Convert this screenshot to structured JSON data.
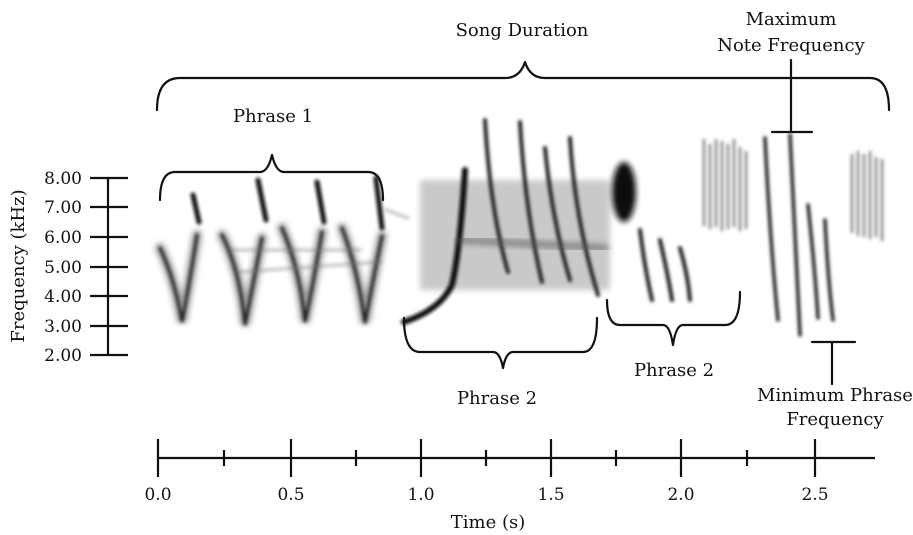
{
  "annotations": {
    "song_duration": "Song Duration",
    "max_note_line1": "Maximum",
    "max_note_line2": "Note Frequency",
    "phrase1": "Phrase 1",
    "phrase2_a": "Phrase 2",
    "phrase2_b": "Phrase 2",
    "min_phrase_line1": "Minimum Phrase",
    "min_phrase_line2": "Frequency"
  },
  "y_axis": {
    "label": "Frequency (kHz)",
    "ticks": [
      "8.00",
      "7.00",
      "6.00",
      "5.00",
      "4.00",
      "3.00",
      "2.00"
    ]
  },
  "x_axis": {
    "label": "Time (s)",
    "ticks": [
      "0.0",
      "0.5",
      "1.0",
      "1.5",
      "2.0",
      "2.5"
    ]
  },
  "colors": {
    "ink": "#111111",
    "spectrogram": "#1a1a1a"
  }
}
